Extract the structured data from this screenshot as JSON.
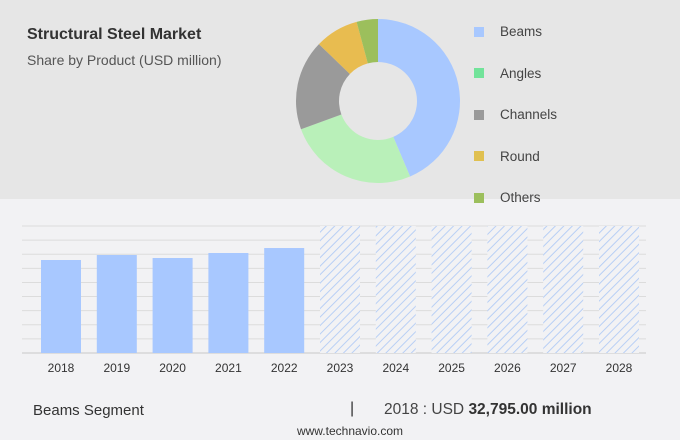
{
  "header": {
    "title": "Structural Steel Market",
    "subtitle": "Share by Product (USD million)"
  },
  "chart_data": [
    {
      "type": "pie",
      "style": "donut",
      "legend_position": "right",
      "categories": [
        "Beams",
        "Angles",
        "Channels",
        "Round",
        "Others"
      ],
      "values": [
        43.6,
        25.8,
        17.8,
        8.6,
        4.2
      ],
      "colors": [
        "#a8c8ff",
        "#b9f0b9",
        "#9a9a9a",
        "#e8bc50",
        "#9cbf5c"
      ],
      "legend_colors": [
        "#a8c8ff",
        "#72e39a",
        "#9a9a9a",
        "#e0c050",
        "#9cbf5c"
      ]
    },
    {
      "type": "bar",
      "categories": [
        "2018",
        "2019",
        "2020",
        "2021",
        "2022",
        "2023",
        "2024",
        "2025",
        "2026",
        "2027",
        "2028"
      ],
      "values": [
        32795,
        34560,
        33500,
        35260,
        37020,
        null,
        null,
        null,
        null,
        null,
        null
      ],
      "forecast_years": [
        "2023",
        "2024",
        "2025",
        "2026",
        "2027",
        "2028"
      ],
      "bar_color": "#a8c8ff",
      "grid": true,
      "ylim": [
        0,
        45000
      ]
    }
  ],
  "footer": {
    "segment": "Beams Segment",
    "separator": "|",
    "value_prefix": "2018 : USD ",
    "value": "32,795.00 million",
    "site": "www.technavio.com"
  }
}
